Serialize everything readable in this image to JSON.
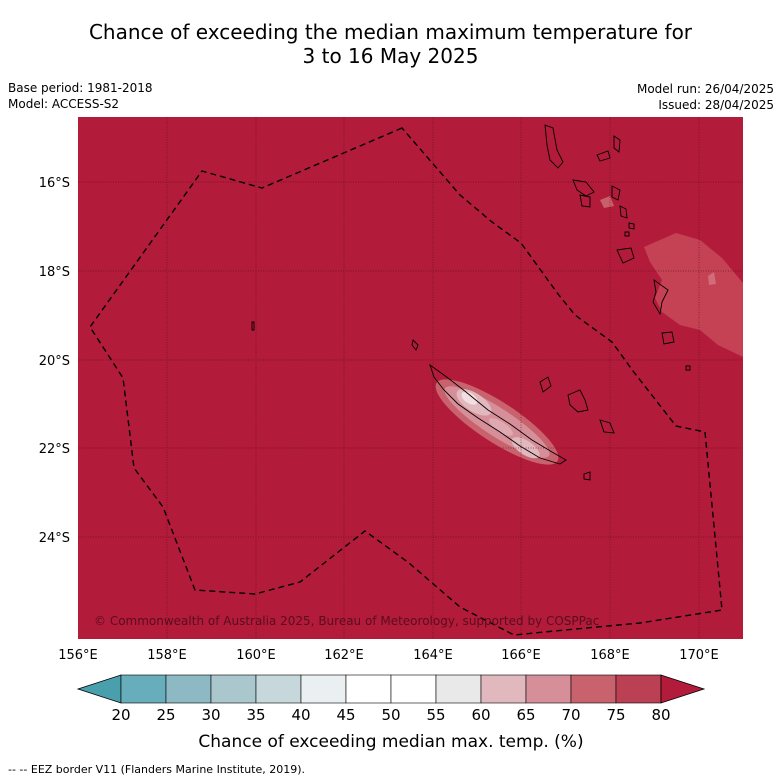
{
  "title": {
    "line1": "Chance of exceeding the median maximum temperature for",
    "line2": "3 to 16 May 2025"
  },
  "meta": {
    "base_period": "Base period: 1981-2018",
    "model": "Model: ACCESS-S2",
    "model_run": "Model run: 26/04/2025",
    "issued": "Issued: 28/04/2025"
  },
  "map": {
    "lon_range": [
      156,
      171
    ],
    "lat_range": [
      -26.0,
      -14.6
    ],
    "lon_ticks": [
      "156°E",
      "158°E",
      "160°E",
      "162°E",
      "164°E",
      "166°E",
      "168°E",
      "170°E"
    ],
    "lat_ticks": [
      "16°S",
      "18°S",
      "20°S",
      "22°S",
      "24°S"
    ],
    "background_color": "#b31b3a",
    "copyright": "© Commonwealth of Australia 2025, Bureau of Meteorology, supported by COSPPac"
  },
  "colorbar": {
    "ticks": [
      "20",
      "25",
      "30",
      "35",
      "40",
      "45",
      "50",
      "55",
      "60",
      "65",
      "70",
      "75",
      "80"
    ],
    "colors": [
      "#67adbb",
      "#8cb9c3",
      "#a9c7cc",
      "#c7d8dc",
      "#eaf0f1",
      "#ffffff",
      "#ffffff",
      "#e9e9e9",
      "#e2b8bf",
      "#d68f99",
      "#c8636e",
      "#bc4053"
    ],
    "under_color": "#4a9fad",
    "over_color": "#b31b3a",
    "label": "Chance of exceeding median max. temp. (%)"
  },
  "legend": {
    "eez_label": "-- -- EEZ border V11 (Flanders Marine Institute, 2019)."
  }
}
